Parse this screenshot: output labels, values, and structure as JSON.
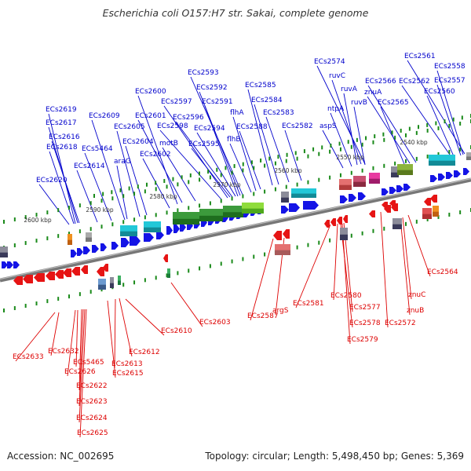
{
  "title": "Escherichia coli O157:H7 str. Sakai, complete genome",
  "accession": "Accession: NC_002695",
  "summary": "Topology: circular; Length: 5,498,450 bp; Genes: 5,369",
  "colors": {
    "forward_label": "#0000cc",
    "reverse_label": "#dd0000",
    "forward_gene": "#1414e6",
    "reverse_gene": "#e61414",
    "axis_line": "#888888",
    "ruler_tick": "#1a8a1a"
  },
  "scale_ticks": [
    {
      "label": "2600 kbp",
      "bp": 2600
    },
    {
      "label": "2590 kbp",
      "bp": 2590
    },
    {
      "label": "2580 kbp",
      "bp": 2580
    },
    {
      "label": "2570 kbp",
      "bp": 2570
    },
    {
      "label": "2560 kbp",
      "bp": 2560
    },
    {
      "label": "2550 kbp",
      "bp": 2550
    },
    {
      "label": "2540 kbp",
      "bp": 2540
    }
  ],
  "forward_labels": [
    "ECs2561",
    "ECs2558",
    "ECs2574",
    "ECs2557",
    "ECs2562",
    "ECs2560",
    "ruvC",
    "ECs2566",
    "znuA",
    "ruvA",
    "ECs2565",
    "ruvB",
    "ntpA",
    "ECs2582",
    "aspS",
    "ECs2585",
    "ECs2584",
    "ECs2583",
    "ECs2593",
    "ECs2592",
    "ECs2591",
    "ECs2600",
    "ECs2597",
    "ECs2601",
    "ECs2596",
    "flhA",
    "ECs2598",
    "ECs2594",
    "ECs2588",
    "motB",
    "flhB",
    "ECs2595",
    "ECs2619",
    "ECs2609",
    "ECs2617",
    "ECs2605",
    "ECs2616",
    "ECs2604",
    "ECs2618",
    "ECs5464",
    "araG",
    "ECs2602",
    "ECs2614",
    "ECs2620"
  ],
  "reverse_labels": [
    "ECs2564",
    "znuC",
    "ECs2581",
    "ECs2580",
    "znuB",
    "ECs2587",
    "argS",
    "ECs2577",
    "ECs2578",
    "ECs2572",
    "ECs2603",
    "ECs2579",
    "ECs2610",
    "ECs2612",
    "ECs2633",
    "ECs2632",
    "ECs2613",
    "ECs5465",
    "ECs2626",
    "ECs2615",
    "ECs2622",
    "ECs2623",
    "ECs2624",
    "ECs2625"
  ]
}
